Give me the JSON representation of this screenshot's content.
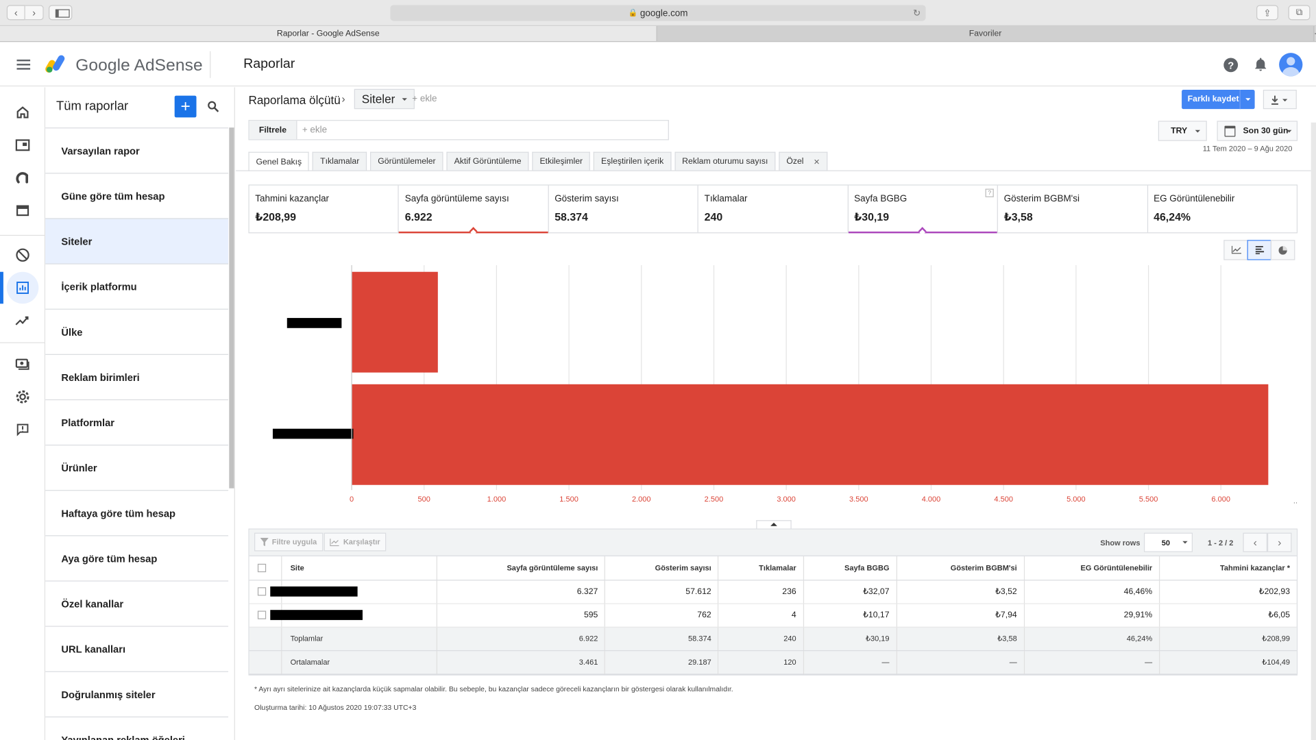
{
  "browser": {
    "url": "google.com",
    "tabs": [
      {
        "label": "Raporlar - Google AdSense"
      },
      {
        "label": "Favoriler"
      }
    ]
  },
  "header": {
    "brand": "Google AdSense",
    "page_title": "Raporlar"
  },
  "panel": {
    "title": "Tüm raporlar",
    "items": [
      {
        "label": "Varsayılan rapor"
      },
      {
        "label": "Güne göre tüm hesap"
      },
      {
        "label": "Siteler"
      },
      {
        "label": "İçerik platformu"
      },
      {
        "label": "Ülke"
      },
      {
        "label": "Reklam birimleri"
      },
      {
        "label": "Platformlar"
      },
      {
        "label": "Ürünler"
      },
      {
        "label": "Haftaya göre tüm hesap"
      },
      {
        "label": "Aya göre tüm hesap"
      },
      {
        "label": "Özel kanallar"
      },
      {
        "label": "URL kanalları"
      },
      {
        "label": "Doğrulanmış siteler"
      },
      {
        "label": "Yayınlanan reklam öğeleri"
      }
    ],
    "selected_index": 2
  },
  "toolbar": {
    "dimension_label": "Raporlama ölçütü",
    "dimension_value": "Siteler",
    "add_dimension": "+ ekle",
    "save_label": "Farklı kaydet",
    "filter_label": "Filtrele",
    "filter_placeholder": "+ ekle",
    "currency": "TRY",
    "date_preset": "Son 30 gün",
    "date_range": "11 Tem 2020 – 9 Ağu 2020"
  },
  "report_tabs": [
    {
      "label": "Genel Bakış"
    },
    {
      "label": "Tıklamalar"
    },
    {
      "label": "Görüntülemeler"
    },
    {
      "label": "Aktif Görüntüleme"
    },
    {
      "label": "Etkileşimler"
    },
    {
      "label": "Eşleştirilen içerik"
    },
    {
      "label": "Reklam oturumu sayısı"
    },
    {
      "label": "Özel"
    }
  ],
  "scorecards": [
    {
      "label": "Tahmini kazançlar",
      "value": "₺208,99"
    },
    {
      "label": "Sayfa görüntüleme sayısı",
      "value": "6.922"
    },
    {
      "label": "Gösterim sayısı",
      "value": "58.374"
    },
    {
      "label": "Tıklamalar",
      "value": "240"
    },
    {
      "label": "Sayfa BGBG",
      "value": "₺30,19"
    },
    {
      "label": "Gösterim BGBM'si",
      "value": "₺3,58"
    },
    {
      "label": "EG Görüntülenebilir",
      "value": "46,24%"
    }
  ],
  "chart_data": {
    "type": "bar",
    "orientation": "horizontal",
    "categories": [
      "",
      ""
    ],
    "values": [
      595,
      6327
    ],
    "xlim": [
      0,
      6500
    ],
    "x_ticks": [
      "0",
      "500",
      "1.000",
      "1.500",
      "2.000",
      "2.500",
      "3.000",
      "3.500",
      "4.000",
      "4.500",
      "5.000",
      "5.500",
      "6.000"
    ],
    "color": "#db4437",
    "grid": true
  },
  "table": {
    "toolbar": {
      "filter_btn": "Filtre uygula",
      "compare_btn": "Karşılaştır",
      "show_rows_label": "Show rows",
      "show_rows_value": "50",
      "pager": "1 - 2 / 2"
    },
    "columns": [
      "Site",
      "Sayfa görüntüleme sayısı",
      "Gösterim sayısı",
      "Tıklamalar",
      "Sayfa BGBG",
      "Gösterim BGBM'si",
      "EG Görüntülenebilir",
      "Tahmini kazançlar *"
    ],
    "rows": [
      [
        "",
        "6.327",
        "57.612",
        "236",
        "₺32,07",
        "₺3,52",
        "46,46%",
        "₺202,93"
      ],
      [
        "",
        "595",
        "762",
        "4",
        "₺10,17",
        "₺7,94",
        "29,91%",
        "₺6,05"
      ]
    ],
    "totals": [
      "Toplamlar",
      "6.922",
      "58.374",
      "240",
      "₺30,19",
      "₺3,58",
      "46,24%",
      "₺208,99"
    ],
    "averages": [
      "Ortalamalar",
      "3.461",
      "29.187",
      "120",
      "—",
      "—",
      "—",
      "₺104,49"
    ]
  },
  "footnote": "* Ayrı ayrı sitelerinize ait kazançlarda küçük sapmalar olabilir. Bu sebeple, bu kazançlar sadece göreceli kazançların bir göstergesi olarak kullanılmalıdır.",
  "created": "Oluşturma tarihi: 10 Ağustos 2020 19:07:33 UTC+3",
  "colors": {
    "accent": "#1a73e8",
    "bar": "#db4437",
    "pageviews_line": "#db4437",
    "rpm_line": "#ab47bc"
  }
}
